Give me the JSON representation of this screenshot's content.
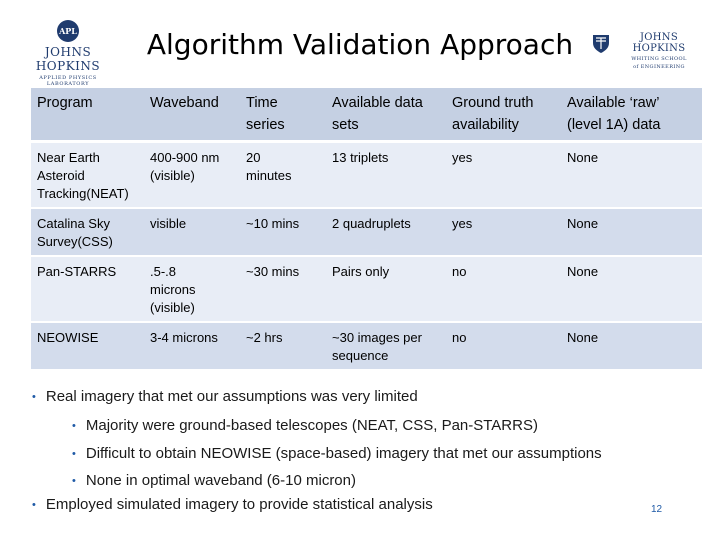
{
  "header": {
    "left_logo": {
      "seal": "APL",
      "name": "JOHNS HOPKINS",
      "sub": "APPLIED PHYSICS LABORATORY"
    },
    "title": "Algorithm Validation Approach",
    "right_logo": {
      "name": "JOHNS HOPKINS",
      "sub_line1": "WHITING SCHOOL",
      "sub_line2": "of ENGINEERING"
    }
  },
  "table": {
    "columns": [
      "Program",
      "Waveband",
      "Time series",
      "Available data sets",
      "Ground truth availability",
      "Available ‘raw’ (level 1A) data"
    ],
    "header_lines": [
      [
        "Program"
      ],
      [
        "Waveband"
      ],
      [
        "Time",
        "series"
      ],
      [
        "Available data",
        "sets"
      ],
      [
        "Ground truth",
        "availability"
      ],
      [
        "Available ‘raw’",
        "(level 1A) data"
      ]
    ],
    "rows": [
      {
        "program": [
          "Near Earth",
          "Asteroid",
          "Tracking(NEAT)"
        ],
        "waveband": [
          "400-900 nm",
          "(visible)"
        ],
        "time_series": [
          "20",
          "minutes"
        ],
        "data_sets": [
          "13 triplets"
        ],
        "ground_truth": "yes",
        "raw_data": "None"
      },
      {
        "program": [
          "Catalina Sky",
          "Survey(CSS)"
        ],
        "waveband": [
          "visible"
        ],
        "time_series": [
          "~10 mins"
        ],
        "data_sets": [
          "2 quadruplets"
        ],
        "ground_truth": "yes",
        "raw_data": "None"
      },
      {
        "program": [
          "Pan-STARRS"
        ],
        "waveband": [
          ".5-.8",
          "microns",
          "(visible)"
        ],
        "time_series": [
          "~30 mins"
        ],
        "data_sets": [
          "Pairs only"
        ],
        "ground_truth": "no",
        "raw_data": "None"
      },
      {
        "program": [
          "NEOWISE"
        ],
        "waveband": [
          "3-4 microns"
        ],
        "time_series": [
          "~2 hrs"
        ],
        "data_sets": [
          "~30 images per",
          "sequence"
        ],
        "ground_truth": "no",
        "raw_data": "None"
      }
    ]
  },
  "bullets": [
    {
      "level": 1,
      "text": "Real imagery that met our assumptions was very limited"
    },
    {
      "level": 2,
      "text": "Majority were ground-based telescopes (NEAT, CSS, Pan-STARRS)"
    },
    {
      "level": 2,
      "text": "Difficult to obtain NEOWISE (space-based) imagery that met our assumptions"
    },
    {
      "level": 2,
      "text": "None in optimal waveband (6-10 micron)"
    },
    {
      "level": 1,
      "text": "Employed simulated imagery to provide statistical analysis"
    }
  ],
  "page_number": "12",
  "colors": {
    "header_fill": "#c5d0e3",
    "row_light": "#e8edf6",
    "row_dark": "#d3dcec",
    "bullet_accent": "#1f5aa6",
    "logo_blue": "#1f3b6e"
  }
}
